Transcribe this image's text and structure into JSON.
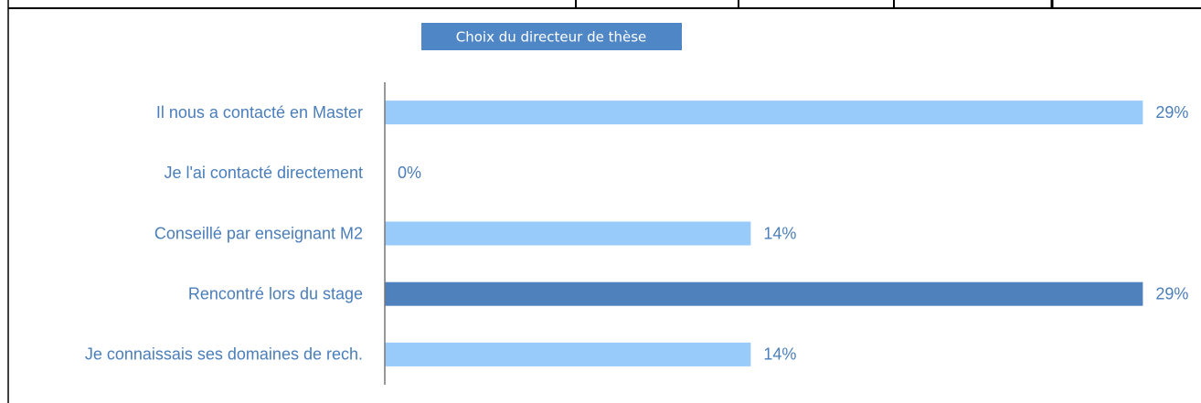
{
  "chart_data": {
    "type": "bar",
    "orientation": "horizontal",
    "title": "Choix du directeur de thèse",
    "categories": [
      "Il nous a contacté en Master",
      "Je l'ai contacté directement",
      "Conseillé par enseignant M2",
      "Rencontré lors du stage",
      "Je connaissais ses domaines de rech."
    ],
    "values": [
      29,
      0,
      14,
      29,
      14
    ],
    "value_labels": [
      "29%",
      "0%",
      "14%",
      "29%",
      "14%"
    ],
    "colors": [
      "#99cbfa",
      "#99cbfa",
      "#99cbfa",
      "#4f81bd",
      "#99cbfa"
    ],
    "xlim": [
      0,
      30
    ]
  }
}
